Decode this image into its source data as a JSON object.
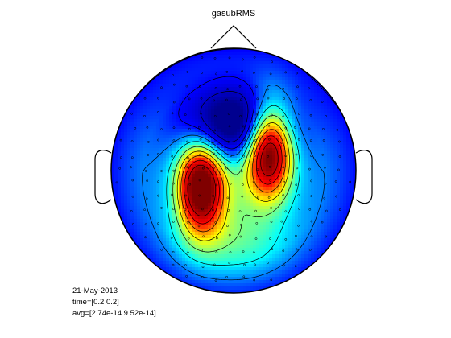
{
  "chart_data": {
    "type": "heatmap",
    "title": "gasubRMS",
    "annotations": {
      "date": "21-May-2013",
      "time": "time=[0.2 0.2]",
      "avg": "avg=[2.74e-14 9.52e-14]"
    },
    "colormap": "jet",
    "colormap_stops": [
      "#00008f",
      "#0000ff",
      "#00ffff",
      "#ffff00",
      "#ff0000",
      "#800000"
    ],
    "value_range": [
      0,
      1
    ],
    "sources": [
      {
        "x": -0.27,
        "y": -0.13,
        "value": 0.94
      },
      {
        "x": 0.29,
        "y": 0.18,
        "value": 1.0
      },
      {
        "x": 0.02,
        "y": 0.38,
        "value": -0.55
      },
      {
        "x": 0.0,
        "y": -0.55,
        "value": 0.22
      },
      {
        "x": 0.0,
        "y": -0.05,
        "value": 0.18
      }
    ],
    "head_outline": true,
    "contours": true,
    "electrodes": "dots"
  }
}
